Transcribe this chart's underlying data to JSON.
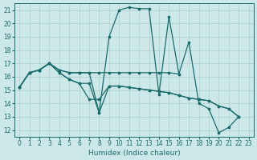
{
  "xlabel": "Humidex (Indice chaleur)",
  "xlim": [
    -0.5,
    23.5
  ],
  "ylim": [
    11.5,
    21.5
  ],
  "yticks": [
    12,
    13,
    14,
    15,
    16,
    17,
    18,
    19,
    20,
    21
  ],
  "xticks": [
    0,
    1,
    2,
    3,
    4,
    5,
    6,
    7,
    8,
    9,
    10,
    11,
    12,
    13,
    14,
    15,
    16,
    17,
    18,
    19,
    20,
    21,
    22,
    23
  ],
  "bg_color": "#cce8e8",
  "grid_color": "#aacfcf",
  "line_color": "#1a6b6b",
  "line1_x": [
    0,
    1,
    2,
    3,
    4,
    5,
    6,
    7,
    8,
    9,
    10,
    11,
    12,
    13,
    14,
    15,
    16
  ],
  "line1_y": [
    15.2,
    16.3,
    16.5,
    17.0,
    16.5,
    16.3,
    16.3,
    16.3,
    16.3,
    16.3,
    16.3,
    16.3,
    16.3,
    16.3,
    16.3,
    16.3,
    16.2
  ],
  "line2_x": [
    0,
    1,
    2,
    3,
    4,
    5,
    6,
    7,
    8,
    9,
    10,
    11,
    12,
    13,
    14,
    15,
    16,
    17,
    18,
    19,
    20,
    21,
    22
  ],
  "line2_y": [
    15.2,
    16.3,
    16.5,
    17.0,
    16.3,
    15.8,
    15.5,
    14.3,
    14.3,
    15.3,
    15.3,
    15.2,
    15.1,
    15.0,
    14.9,
    14.8,
    14.6,
    14.4,
    14.3,
    14.2,
    13.8,
    13.6,
    13.0
  ],
  "line3_x": [
    0,
    1,
    2,
    3,
    4,
    5,
    6,
    7,
    8,
    9,
    10,
    11,
    12,
    13,
    14,
    15,
    16,
    17,
    18,
    19,
    20,
    21,
    22
  ],
  "line3_y": [
    15.2,
    16.3,
    16.5,
    17.0,
    16.3,
    15.8,
    15.5,
    15.5,
    13.3,
    15.3,
    15.3,
    15.2,
    15.1,
    15.0,
    14.9,
    14.8,
    14.6,
    14.4,
    14.3,
    14.2,
    13.8,
    13.6,
    13.0
  ],
  "line4_x": [
    0,
    1,
    2,
    3,
    4,
    5,
    6,
    7,
    8,
    9,
    10,
    11,
    12,
    13,
    14,
    15,
    16,
    17,
    18,
    19,
    20,
    21,
    22
  ],
  "line4_y": [
    15.2,
    16.3,
    16.5,
    17.0,
    16.5,
    16.3,
    16.3,
    16.3,
    13.3,
    19.0,
    21.0,
    21.2,
    21.1,
    21.1,
    14.7,
    20.5,
    16.2,
    18.6,
    14.0,
    13.6,
    11.8,
    12.2,
    13.0
  ]
}
